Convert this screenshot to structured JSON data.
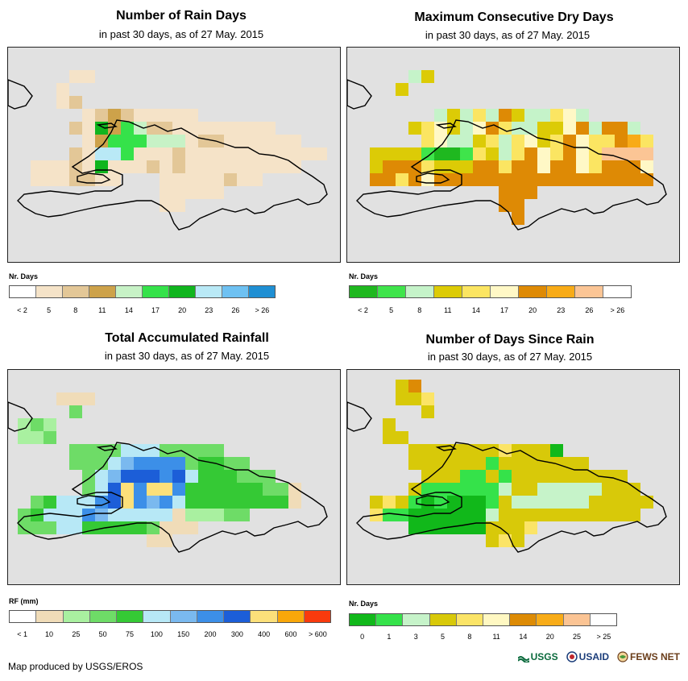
{
  "panels": [
    {
      "title": "Number of Rain Days",
      "subtitle": "in past 30 days, as of 27 May. 2015",
      "legend_title": "Nr. Days",
      "legend_colors": [
        "#ffffff",
        "#f5e3c8",
        "#e3c797",
        "#cda24a",
        "#c7f2c6",
        "#35e24a",
        "#10b51e",
        "#b9e9f6",
        "#6ec1f2",
        "#1f8fd3"
      ],
      "legend_labels": [
        "< 2",
        "5",
        "8",
        "11",
        "14",
        "17",
        "20",
        "23",
        "26",
        "> 26"
      ]
    },
    {
      "title": "Maximum Consecutive Dry Days",
      "subtitle": "in past 30 days, as of 27 May. 2015",
      "legend_title": "Nr. Days",
      "legend_colors": [
        "#1fb81f",
        "#3fe44b",
        "#c5f3c9",
        "#dccb06",
        "#fbe562",
        "#fff8c6",
        "#de8a05",
        "#f8ab17",
        "#fbc595",
        "#ffffff"
      ],
      "legend_labels": [
        "< 2",
        "5",
        "8",
        "11",
        "14",
        "17",
        "20",
        "23",
        "26",
        "> 26"
      ]
    },
    {
      "title": "Total Accumulated Rainfall",
      "subtitle": "in past 30 days, as of 27 May. 2015",
      "legend_title": "RF (mm)",
      "legend_colors": [
        "#ffffff",
        "#f0dcb8",
        "#a9f0a0",
        "#6edc67",
        "#35c935",
        "#b7e8f6",
        "#7ab9ef",
        "#3c8fe8",
        "#1c5ed8",
        "#fce07a",
        "#f9a70a",
        "#f93a0d"
      ],
      "legend_labels": [
        "< 1",
        "10",
        "25",
        "50",
        "75",
        "100",
        "150",
        "200",
        "300",
        "400",
        "600",
        "> 600"
      ]
    },
    {
      "title": "Number of Days Since Rain",
      "subtitle": "in past 30 days, as of 27 May. 2015",
      "legend_title": "Nr. Days",
      "legend_colors": [
        "#11b81a",
        "#35e24a",
        "#c6f3c9",
        "#d8c909",
        "#fbe467",
        "#fff8c2",
        "#dd8b05",
        "#f8ac18",
        "#fbc494",
        "#ffffff"
      ],
      "legend_labels": [
        "0",
        "1",
        "3",
        "5",
        "8",
        "11",
        "14",
        "20",
        "25",
        "> 25"
      ]
    }
  ],
  "credit": "Map produced by USGS/EROS",
  "logos": {
    "usgs": "USGS",
    "usaid": "USAID",
    "fews": "FEWS NET"
  },
  "colors": {
    "map_background": "#e1e1e1",
    "coastline": "#000000"
  }
}
